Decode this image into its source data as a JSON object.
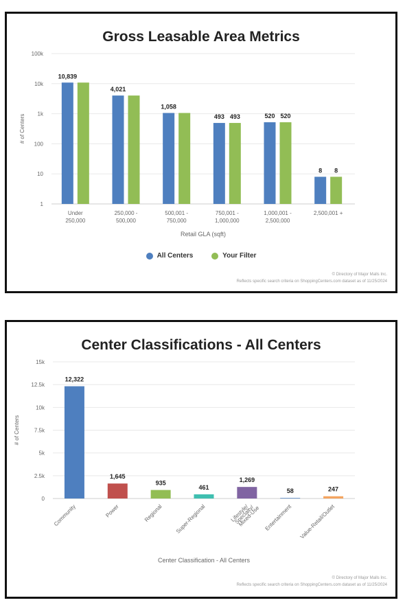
{
  "colors": {
    "all_centers": "#4e7fbf",
    "your_filter": "#92bd55"
  },
  "chart_data": [
    {
      "type": "bar",
      "title": "Gross Leasable Area Metrics",
      "xlabel": "Retail GLA (sqft)",
      "ylabel": "# of Centers",
      "yscale": "log",
      "ylim": [
        1,
        100000
      ],
      "yticks": [
        "1",
        "10",
        "100",
        "1k",
        "10k",
        "100k"
      ],
      "categories": [
        [
          "Under",
          "250,000"
        ],
        [
          "250,000 -",
          "500,000"
        ],
        [
          "500,001 -",
          "750,000"
        ],
        [
          "750,001 -",
          "1,000,000"
        ],
        [
          "1,000,001 -",
          "2,500,000"
        ],
        [
          "2,500,001 +"
        ]
      ],
      "series": [
        {
          "name": "All Centers",
          "values": [
            10839,
            4021,
            1058,
            493,
            520,
            8
          ],
          "labels": [
            "10,839",
            "4,021",
            "1,058",
            "493",
            "520",
            "8"
          ]
        },
        {
          "name": "Your Filter",
          "values": [
            10839,
            4021,
            1058,
            493,
            520,
            8
          ],
          "labels": [
            "",
            "",
            "",
            "493",
            "520",
            "8"
          ]
        }
      ],
      "legend": "bottom-center",
      "credit": [
        "© Directory of Major Malls Inc.",
        "Reflects specific search criteria on ShoppingCenters.com dataset as of 11/25/2024"
      ]
    },
    {
      "type": "bar",
      "title": "Center Classifications - All Centers",
      "xlabel": "Center Classification - All Centers",
      "ylabel": "# of Centers",
      "ylim": [
        0,
        15000
      ],
      "yticks": [
        "0",
        "2.5k",
        "5k",
        "7.5k",
        "10k",
        "12.5k",
        "15k"
      ],
      "categories": [
        "Community",
        "Power",
        "Regional",
        "Super-Regional",
        [
          "Lifestyle/",
          "Specialty/",
          "Mixed-Use"
        ],
        "Entertainment",
        "Value-Retail/Outlet"
      ],
      "values": [
        12322,
        1645,
        935,
        461,
        1269,
        58,
        247
      ],
      "labels": [
        "12,322",
        "1,645",
        "935",
        "461",
        "1,269",
        "58",
        "247"
      ],
      "colors": [
        "#4e7fbf",
        "#c0504d",
        "#92bd55",
        "#3fbfb0",
        "#8064a2",
        "#4e7fbf",
        "#f4a460"
      ],
      "credit": [
        "© Directory of Major Malls Inc.",
        "Reflects specific search criteria on ShoppingCenters.com dataset as of 11/25/2024"
      ]
    }
  ]
}
